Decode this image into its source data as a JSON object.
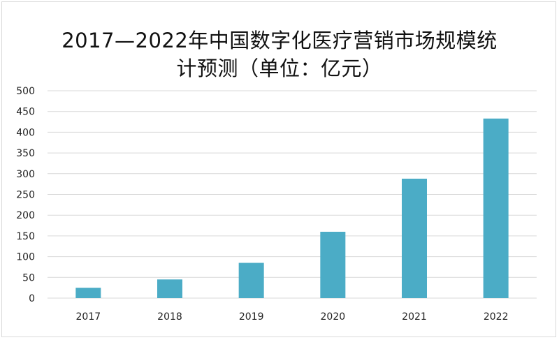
{
  "chart_data": {
    "type": "bar",
    "title_line1": "2017—2022年中国数字化医疗营销市场规模统",
    "title_line2": "计预测（单位：亿元）",
    "categories": [
      "2017",
      "2018",
      "2019",
      "2020",
      "2021",
      "2022"
    ],
    "values": [
      25,
      45,
      85,
      160,
      288,
      433
    ],
    "ylim": [
      0,
      500
    ],
    "yticks": [
      0,
      50,
      100,
      150,
      200,
      250,
      300,
      350,
      400,
      450,
      500
    ],
    "grid": true,
    "bar_color": "#4bacc6",
    "grid_color": "#d9d9d9"
  }
}
